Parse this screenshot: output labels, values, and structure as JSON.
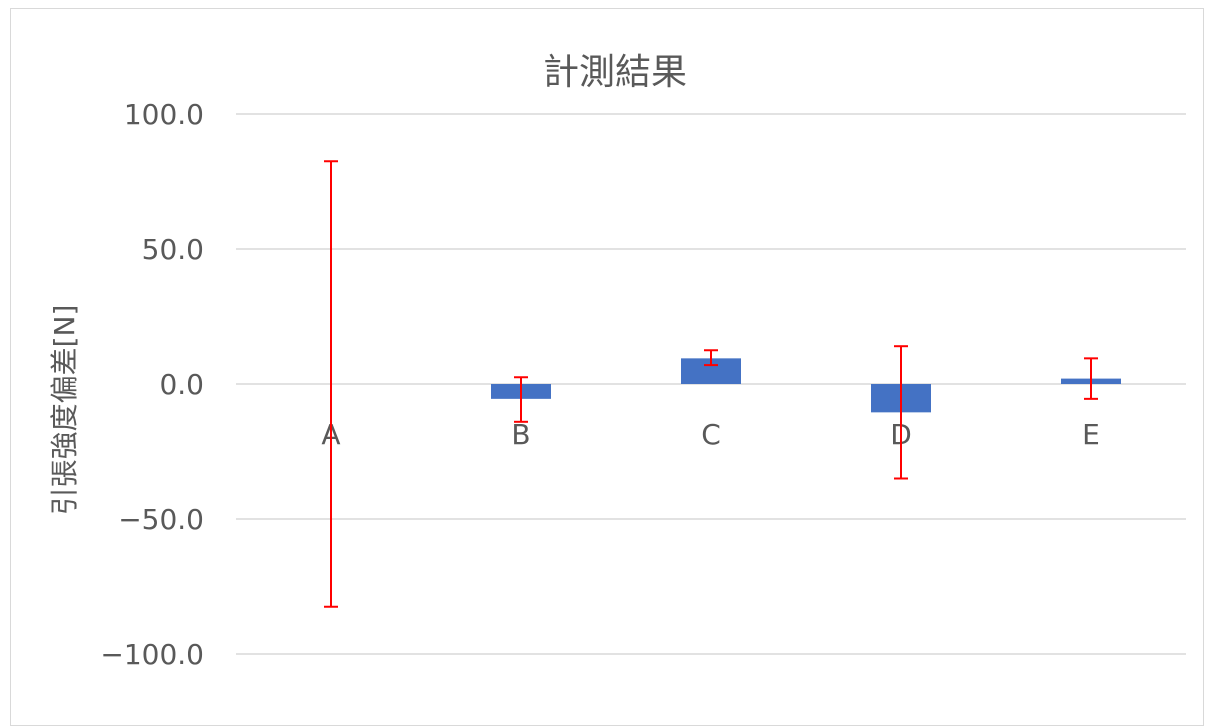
{
  "chart_data": {
    "type": "bar",
    "title": "計測結果",
    "xlabel": "",
    "ylabel": "引張強度偏差[N]",
    "categories": [
      "A",
      "B",
      "C",
      "D",
      "E"
    ],
    "values": [
      0.0,
      -5.5,
      9.5,
      -10.5,
      2.0
    ],
    "error_low": [
      -82.5,
      -14.0,
      7.0,
      -35.0,
      -5.5
    ],
    "error_high": [
      82.5,
      2.5,
      12.5,
      14.0,
      9.5
    ],
    "ylim": [
      -100,
      100
    ],
    "yticks": [
      "100.0",
      "50.0",
      "0.0",
      "−50.0",
      "−100.0"
    ],
    "ytick_values": [
      100,
      50,
      0,
      -50,
      -100
    ],
    "grid": true,
    "legend": "none",
    "bar_color": "#4472c4",
    "error_color": "#ff0000",
    "grid_color": "#d9d9d9"
  }
}
